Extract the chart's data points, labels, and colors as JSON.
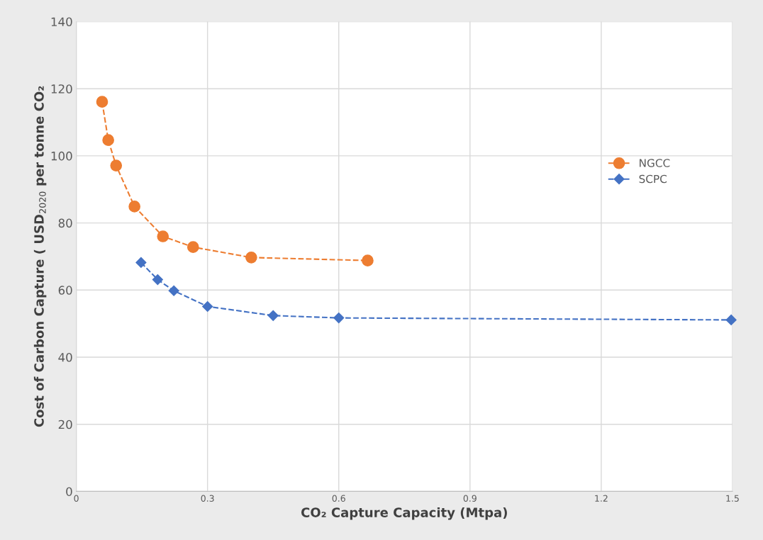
{
  "chart_data": {
    "type": "line",
    "xlabel": "CO₂ Capture Capacity (Mtpa)",
    "ylabel": "Cost of Carbon Capture ( USD$_{2020}$ per tonne CO₂",
    "xlim": [
      0,
      1.5
    ],
    "xticks": [
      0,
      0.3,
      0.6,
      0.9,
      1.2,
      1.5
    ],
    "ylim": [
      0,
      140
    ],
    "yticks": [
      0,
      20,
      40,
      60,
      80,
      100,
      120,
      140
    ],
    "grid": true,
    "legend": "right",
    "line_style": "dashed",
    "series": [
      {
        "name": "NGCC",
        "color": "#ed7d31",
        "marker": "circle",
        "x": [
          0.059,
          0.073,
          0.091,
          0.133,
          0.198,
          0.267,
          0.4,
          0.666
        ],
        "values": [
          116.1,
          104.7,
          97.1,
          84.9,
          76.0,
          72.8,
          69.7,
          68.8
        ]
      },
      {
        "name": "SCPC",
        "color": "#4472c4",
        "marker": "diamond",
        "x": [
          0.148,
          0.186,
          0.223,
          0.3,
          0.45,
          0.6,
          1.497
        ],
        "values": [
          68.2,
          63.1,
          59.8,
          55.1,
          52.4,
          51.7,
          51.1
        ]
      }
    ]
  }
}
